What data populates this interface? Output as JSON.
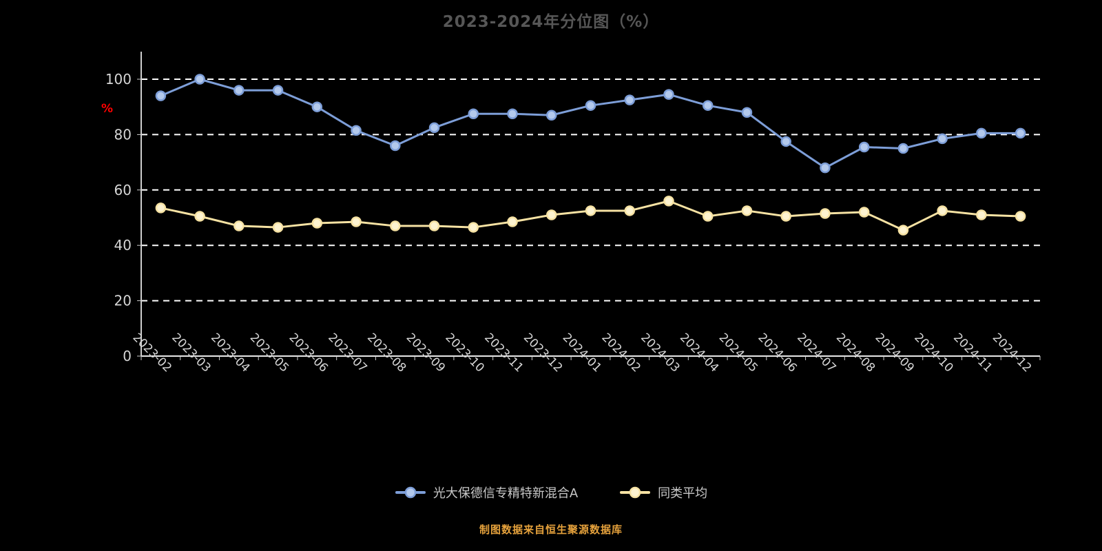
{
  "page": {
    "background": "#000000"
  },
  "chart": {
    "title": "2023-2024年分位图（%）",
    "y_axis_name": "%",
    "footer": "制图数据来自恒生聚源数据库"
  },
  "legend": {
    "items": [
      {
        "label": "光大保德信专精特新混合A",
        "color": "#7d9ed8",
        "point_fill": "#b3c9ec"
      },
      {
        "label": "同类平均",
        "color": "#f6e2a3",
        "point_fill": "#fdf3d0"
      }
    ]
  },
  "chart_data": {
    "type": "line",
    "title": "2023-2024年分位图（%）",
    "xlabel": "",
    "ylabel": "%",
    "ylim": [
      0,
      100
    ],
    "yticks": [
      0,
      20,
      40,
      60,
      80,
      100
    ],
    "grid": "dashed-horizontal",
    "legend_position": "bottom",
    "categories": [
      "2023-02",
      "2023-03",
      "2023-04",
      "2023-05",
      "2023-06",
      "2023-07",
      "2023-08",
      "2023-09",
      "2023-10",
      "2023-11",
      "2023-12",
      "2024-01",
      "2024-02",
      "2024-03",
      "2024-04",
      "2024-05",
      "2024-06",
      "2024-07",
      "2024-08",
      "2024-09",
      "2024-10",
      "2024-11",
      "2024-12"
    ],
    "series": [
      {
        "name": "光大保德信专精特新混合A",
        "color": "#7d9ed8",
        "point_fill": "#b3c9ec",
        "values": [
          94,
          100,
          96,
          96,
          90,
          81.5,
          76,
          82.5,
          87.5,
          87.5,
          87,
          90.5,
          92.5,
          94.5,
          90.5,
          88,
          77.5,
          68,
          75.5,
          75,
          78.5,
          80.5,
          80.5
        ]
      },
      {
        "name": "同类平均",
        "color": "#f6e2a3",
        "point_fill": "#fdf3d0",
        "values": [
          53.5,
          50.5,
          47,
          46.5,
          48,
          48.5,
          47,
          47,
          46.5,
          48.5,
          51,
          52.5,
          52.5,
          56,
          50.5,
          52.5,
          50.5,
          51.5,
          52,
          45.5,
          52.5,
          51,
          50.5
        ]
      }
    ]
  }
}
